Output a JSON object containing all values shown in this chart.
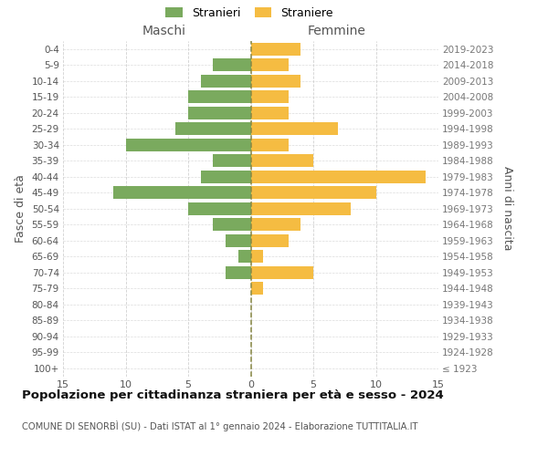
{
  "age_groups": [
    "100+",
    "95-99",
    "90-94",
    "85-89",
    "80-84",
    "75-79",
    "70-74",
    "65-69",
    "60-64",
    "55-59",
    "50-54",
    "45-49",
    "40-44",
    "35-39",
    "30-34",
    "25-29",
    "20-24",
    "15-19",
    "10-14",
    "5-9",
    "0-4"
  ],
  "birth_years": [
    "≤ 1923",
    "1924-1928",
    "1929-1933",
    "1934-1938",
    "1939-1943",
    "1944-1948",
    "1949-1953",
    "1954-1958",
    "1959-1963",
    "1964-1968",
    "1969-1973",
    "1974-1978",
    "1979-1983",
    "1984-1988",
    "1989-1993",
    "1994-1998",
    "1999-2003",
    "2004-2008",
    "2009-2013",
    "2014-2018",
    "2019-2023"
  ],
  "males": [
    0,
    0,
    0,
    0,
    0,
    0,
    2,
    1,
    2,
    3,
    5,
    11,
    4,
    3,
    10,
    6,
    5,
    5,
    4,
    3,
    0
  ],
  "females": [
    0,
    0,
    0,
    0,
    0,
    1,
    5,
    1,
    3,
    4,
    8,
    10,
    14,
    5,
    3,
    7,
    3,
    3,
    4,
    3,
    4
  ],
  "male_color": "#7aaa5e",
  "female_color": "#f5bc42",
  "title": "Popolazione per cittadinanza straniera per età e sesso - 2024",
  "subtitle": "COMUNE DI SENORBÌ (SU) - Dati ISTAT al 1° gennaio 2024 - Elaborazione TUTTITALIA.IT",
  "xlabel_left": "Maschi",
  "xlabel_right": "Femmine",
  "ylabel_left": "Fasce di età",
  "ylabel_right": "Anni di nascita",
  "legend_male": "Stranieri",
  "legend_female": "Straniere",
  "xlim": 15,
  "background_color": "#ffffff",
  "grid_color": "#cccccc"
}
